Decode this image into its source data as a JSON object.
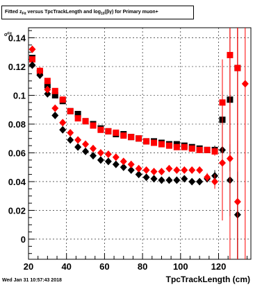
{
  "figure": {
    "title_pre": "Fitted  z",
    "title_sub": "Fit",
    "title_mid": "  versus TpcTrackLength and log",
    "title_sub2": "10",
    "title_post": "(βγ) for Primary muon+",
    "ylabel_main": "σ",
    "ylabel_sub": "Fit",
    "xlabel": "TpcTrackLength (cm)",
    "timestamp": "Wed Jan 31 10:57:43 2018"
  },
  "chart_data": {
    "type": "scatter",
    "title": "Fitted  zFit  versus TpcTrackLength and log10(βγ) for Primary muon+",
    "xlabel": "TpcTrackLength (cm)",
    "ylabel": "σFit",
    "xlim": [
      20,
      137
    ],
    "ylim": [
      -0.014,
      0.147
    ],
    "x_ticks": [
      20,
      40,
      60,
      80,
      100,
      120
    ],
    "y_ticks": [
      0,
      0.02,
      0.04,
      0.06,
      0.08,
      0.1,
      0.12,
      0.14
    ],
    "x_tick_labels": [
      "20",
      "40",
      "60",
      "80",
      "100",
      "120"
    ],
    "y_tick_labels": [
      "0",
      "0.02",
      "0.04",
      "0.06",
      "0.08",
      "0.1",
      "0.12",
      "0.14"
    ],
    "grid": true,
    "series": [
      {
        "color": "#000000",
        "marker": "square",
        "points": [
          {
            "x": 22,
            "y": 0.126,
            "err": 0.002
          },
          {
            "x": 26,
            "y": 0.116,
            "err": 0.002
          },
          {
            "x": 30,
            "y": 0.107,
            "err": 0.002
          },
          {
            "x": 34,
            "y": 0.1,
            "err": 0.002
          },
          {
            "x": 38,
            "y": 0.096,
            "err": 0.002
          },
          {
            "x": 42,
            "y": 0.089,
            "err": 0.002
          },
          {
            "x": 46,
            "y": 0.087,
            "err": 0.002
          },
          {
            "x": 50,
            "y": 0.082,
            "err": 0.002
          },
          {
            "x": 54,
            "y": 0.08,
            "err": 0.002
          },
          {
            "x": 58,
            "y": 0.077,
            "err": 0.002
          },
          {
            "x": 62,
            "y": 0.075,
            "err": 0.002
          },
          {
            "x": 66,
            "y": 0.073,
            "err": 0.002
          },
          {
            "x": 70,
            "y": 0.073,
            "err": 0.002
          },
          {
            "x": 74,
            "y": 0.071,
            "err": 0.002
          },
          {
            "x": 78,
            "y": 0.07,
            "err": 0.002
          },
          {
            "x": 82,
            "y": 0.068,
            "err": 0.002
          },
          {
            "x": 86,
            "y": 0.068,
            "err": 0.002
          },
          {
            "x": 90,
            "y": 0.067,
            "err": 0.002
          },
          {
            "x": 94,
            "y": 0.066,
            "err": 0.002
          },
          {
            "x": 98,
            "y": 0.066,
            "err": 0.002
          },
          {
            "x": 102,
            "y": 0.065,
            "err": 0.002
          },
          {
            "x": 106,
            "y": 0.064,
            "err": 0.002
          },
          {
            "x": 110,
            "y": 0.063,
            "err": 0.002
          },
          {
            "x": 114,
            "y": 0.062,
            "err": 0.002
          },
          {
            "x": 118,
            "y": 0.062,
            "err": 0.003
          },
          {
            "x": 122,
            "y": 0.083,
            "err": 0.02
          },
          {
            "x": 126,
            "y": 0.097,
            "err": 0.05
          },
          {
            "x": 130,
            "y": 0.119,
            "err": 0.15
          }
        ]
      },
      {
        "color": "#ff0000",
        "marker": "square",
        "points": [
          {
            "x": 22,
            "y": 0.125,
            "err": 0.002
          },
          {
            "x": 26,
            "y": 0.117,
            "err": 0.002
          },
          {
            "x": 30,
            "y": 0.11,
            "err": 0.002
          },
          {
            "x": 34,
            "y": 0.103,
            "err": 0.002
          },
          {
            "x": 38,
            "y": 0.097,
            "err": 0.002
          },
          {
            "x": 42,
            "y": 0.089,
            "err": 0.002
          },
          {
            "x": 46,
            "y": 0.084,
            "err": 0.002
          },
          {
            "x": 50,
            "y": 0.082,
            "err": 0.002
          },
          {
            "x": 54,
            "y": 0.079,
            "err": 0.002
          },
          {
            "x": 58,
            "y": 0.076,
            "err": 0.002
          },
          {
            "x": 62,
            "y": 0.075,
            "err": 0.002
          },
          {
            "x": 66,
            "y": 0.074,
            "err": 0.002
          },
          {
            "x": 70,
            "y": 0.072,
            "err": 0.002
          },
          {
            "x": 74,
            "y": 0.071,
            "err": 0.002
          },
          {
            "x": 78,
            "y": 0.07,
            "err": 0.002
          },
          {
            "x": 82,
            "y": 0.068,
            "err": 0.002
          },
          {
            "x": 86,
            "y": 0.067,
            "err": 0.002
          },
          {
            "x": 90,
            "y": 0.066,
            "err": 0.002
          },
          {
            "x": 94,
            "y": 0.065,
            "err": 0.002
          },
          {
            "x": 98,
            "y": 0.064,
            "err": 0.002
          },
          {
            "x": 102,
            "y": 0.064,
            "err": 0.002
          },
          {
            "x": 106,
            "y": 0.063,
            "err": 0.002
          },
          {
            "x": 110,
            "y": 0.062,
            "err": 0.002
          },
          {
            "x": 114,
            "y": 0.062,
            "err": 0.002
          },
          {
            "x": 118,
            "y": 0.061,
            "err": 0.003
          },
          {
            "x": 122,
            "y": 0.095,
            "err": 0.03
          },
          {
            "x": 126,
            "y": 0.128,
            "err": 0.08
          },
          {
            "x": 130,
            "y": 0.119,
            "err": 0.15
          }
        ]
      },
      {
        "color": "#000000",
        "marker": "diamond",
        "points": [
          {
            "x": 22,
            "y": 0.121,
            "err": 0.002
          },
          {
            "x": 26,
            "y": 0.114,
            "err": 0.002
          },
          {
            "x": 30,
            "y": 0.101,
            "err": 0.002
          },
          {
            "x": 34,
            "y": 0.086,
            "err": 0.002
          },
          {
            "x": 38,
            "y": 0.076,
            "err": 0.002
          },
          {
            "x": 42,
            "y": 0.069,
            "err": 0.002
          },
          {
            "x": 46,
            "y": 0.064,
            "err": 0.002
          },
          {
            "x": 50,
            "y": 0.061,
            "err": 0.002
          },
          {
            "x": 54,
            "y": 0.058,
            "err": 0.002
          },
          {
            "x": 58,
            "y": 0.055,
            "err": 0.002
          },
          {
            "x": 62,
            "y": 0.054,
            "err": 0.002
          },
          {
            "x": 66,
            "y": 0.052,
            "err": 0.002
          },
          {
            "x": 70,
            "y": 0.05,
            "err": 0.002
          },
          {
            "x": 74,
            "y": 0.048,
            "err": 0.002
          },
          {
            "x": 78,
            "y": 0.045,
            "err": 0.002
          },
          {
            "x": 82,
            "y": 0.043,
            "err": 0.002
          },
          {
            "x": 86,
            "y": 0.042,
            "err": 0.002
          },
          {
            "x": 90,
            "y": 0.041,
            "err": 0.002
          },
          {
            "x": 94,
            "y": 0.041,
            "err": 0.002
          },
          {
            "x": 98,
            "y": 0.041,
            "err": 0.002
          },
          {
            "x": 102,
            "y": 0.042,
            "err": 0.002
          },
          {
            "x": 106,
            "y": 0.04,
            "err": 0.002
          },
          {
            "x": 110,
            "y": 0.04,
            "err": 0.002
          },
          {
            "x": 114,
            "y": 0.042,
            "err": 0.002
          },
          {
            "x": 118,
            "y": 0.044,
            "err": 0.004
          },
          {
            "x": 122,
            "y": 0.062,
            "err": 0.02
          },
          {
            "x": 126,
            "y": 0.041,
            "err": 0.025
          },
          {
            "x": 130,
            "y": 0.017,
            "err": 0.03
          }
        ]
      },
      {
        "color": "#ff0000",
        "marker": "diamond",
        "points": [
          {
            "x": 22,
            "y": 0.132,
            "err": 0.002
          },
          {
            "x": 26,
            "y": 0.117,
            "err": 0.002
          },
          {
            "x": 30,
            "y": 0.104,
            "err": 0.002
          },
          {
            "x": 34,
            "y": 0.091,
            "err": 0.002
          },
          {
            "x": 38,
            "y": 0.081,
            "err": 0.002
          },
          {
            "x": 42,
            "y": 0.074,
            "err": 0.002
          },
          {
            "x": 46,
            "y": 0.069,
            "err": 0.002
          },
          {
            "x": 50,
            "y": 0.066,
            "err": 0.002
          },
          {
            "x": 54,
            "y": 0.063,
            "err": 0.002
          },
          {
            "x": 58,
            "y": 0.06,
            "err": 0.002
          },
          {
            "x": 62,
            "y": 0.059,
            "err": 0.002
          },
          {
            "x": 66,
            "y": 0.057,
            "err": 0.002
          },
          {
            "x": 70,
            "y": 0.054,
            "err": 0.002
          },
          {
            "x": 74,
            "y": 0.052,
            "err": 0.002
          },
          {
            "x": 78,
            "y": 0.049,
            "err": 0.002
          },
          {
            "x": 82,
            "y": 0.048,
            "err": 0.002
          },
          {
            "x": 86,
            "y": 0.047,
            "err": 0.002
          },
          {
            "x": 90,
            "y": 0.047,
            "err": 0.002
          },
          {
            "x": 94,
            "y": 0.049,
            "err": 0.002
          },
          {
            "x": 98,
            "y": 0.048,
            "err": 0.002
          },
          {
            "x": 102,
            "y": 0.048,
            "err": 0.002
          },
          {
            "x": 106,
            "y": 0.048,
            "err": 0.002
          },
          {
            "x": 110,
            "y": 0.048,
            "err": 0.002
          },
          {
            "x": 114,
            "y": 0.043,
            "err": 0.003
          },
          {
            "x": 118,
            "y": 0.04,
            "err": 0.005
          },
          {
            "x": 122,
            "y": 0.053,
            "err": 0.04
          },
          {
            "x": 126,
            "y": 0.056,
            "err": 0.09
          },
          {
            "x": 130,
            "y": 0.026,
            "err": 0.15
          },
          {
            "x": 134,
            "y": 0.108,
            "err": 0.15
          }
        ]
      }
    ]
  }
}
